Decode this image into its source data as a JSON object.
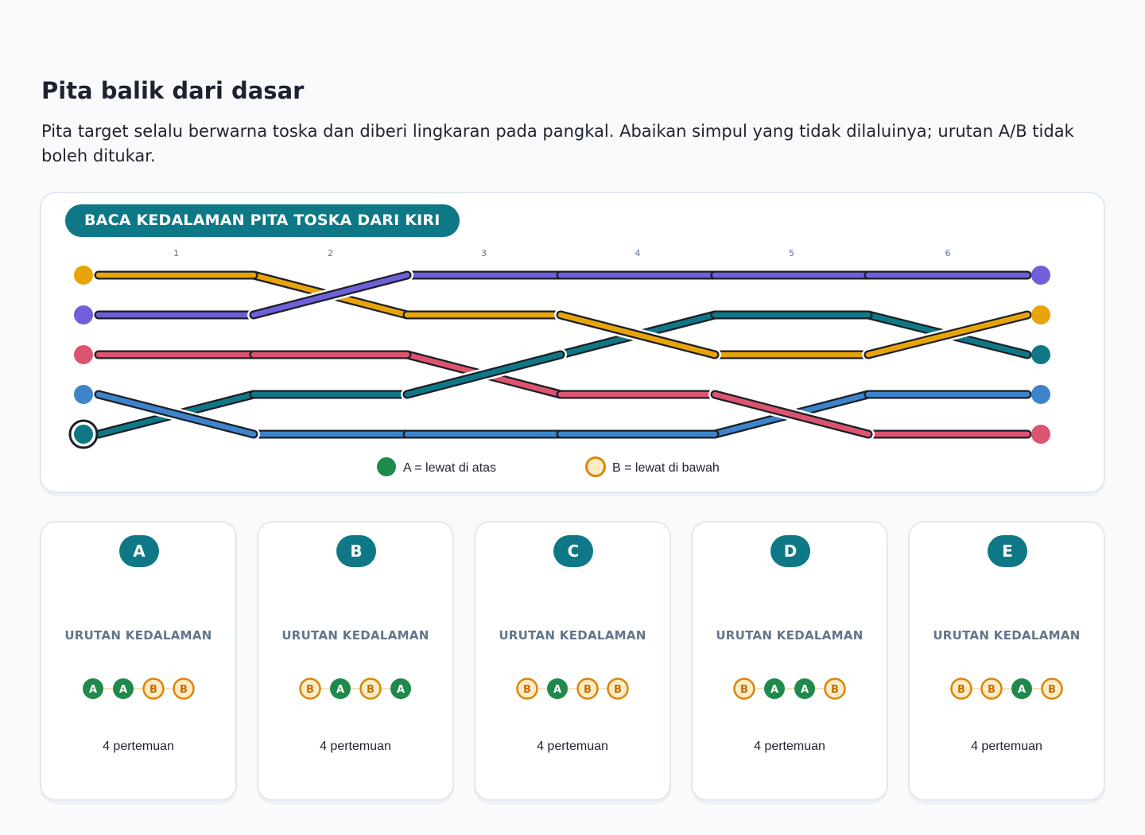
{
  "title": "Pita balik dari dasar",
  "instruction": "Pita target selalu berwarna toska dan diberi lingkaran pada pangkal. Abaikan simpul yang tidak dilaluinya; urutan A/B tidak boleh ditukar.",
  "panel": {
    "label": "BACA KEDALAMAN PITA TOSKA DARI KIRI",
    "columns": [
      "1",
      "2",
      "3",
      "4",
      "5",
      "6"
    ],
    "legend": [
      {
        "key": "A",
        "text": "A = lewat di atas",
        "color": "#1f8a4c"
      },
      {
        "key": "B",
        "text": "B = lewat di bawah",
        "color": "#fdebc3"
      }
    ]
  },
  "ribbons": {
    "colors": {
      "orange": "#e8a409",
      "purple": "#6f5fd8",
      "red": "#dc5470",
      "blue": "#3d84cb",
      "teal": "#0e7887"
    },
    "target": "teal",
    "left_order": [
      "orange",
      "purple",
      "red",
      "blue",
      "teal"
    ],
    "right_order": [
      "purple",
      "orange",
      "teal",
      "blue",
      "red"
    ],
    "crossings": [
      {
        "column": 1,
        "slots": [
          3,
          4
        ],
        "over": "blue",
        "under": "teal"
      },
      {
        "column": 2,
        "slots": [
          0,
          1
        ],
        "over": "purple",
        "under": "orange"
      },
      {
        "column": 3,
        "slots": [
          2,
          3
        ],
        "over": "teal",
        "under": "red"
      },
      {
        "column": 4,
        "slots": [
          1,
          2
        ],
        "over": "orange",
        "under": "teal"
      },
      {
        "column": 5,
        "slots": [
          3,
          4
        ],
        "over": "red",
        "under": "blue"
      },
      {
        "column": 6,
        "slots": [
          1,
          2
        ],
        "over": "orange",
        "under": "teal"
      }
    ]
  },
  "options": [
    {
      "letter": "A",
      "label": "URUTAN KEDALAMAN",
      "sequence": [
        "A",
        "A",
        "B",
        "B"
      ],
      "count": "4 pertemuan"
    },
    {
      "letter": "B",
      "label": "URUTAN KEDALAMAN",
      "sequence": [
        "B",
        "A",
        "B",
        "A"
      ],
      "count": "4 pertemuan"
    },
    {
      "letter": "C",
      "label": "URUTAN KEDALAMAN",
      "sequence": [
        "B",
        "A",
        "B",
        "B"
      ],
      "count": "4 pertemuan"
    },
    {
      "letter": "D",
      "label": "URUTAN KEDALAMAN",
      "sequence": [
        "B",
        "A",
        "A",
        "B"
      ],
      "count": "4 pertemuan"
    },
    {
      "letter": "E",
      "label": "URUTAN KEDALAMAN",
      "sequence": [
        "B",
        "B",
        "A",
        "B"
      ],
      "count": "4 pertemuan"
    }
  ],
  "marker_colors": {
    "A_fill": "#1f8a4c",
    "A_text": "#ffffff",
    "B_fill": "#fdebc3",
    "B_stroke": "#d9860e",
    "B_text": "#c46f05"
  }
}
